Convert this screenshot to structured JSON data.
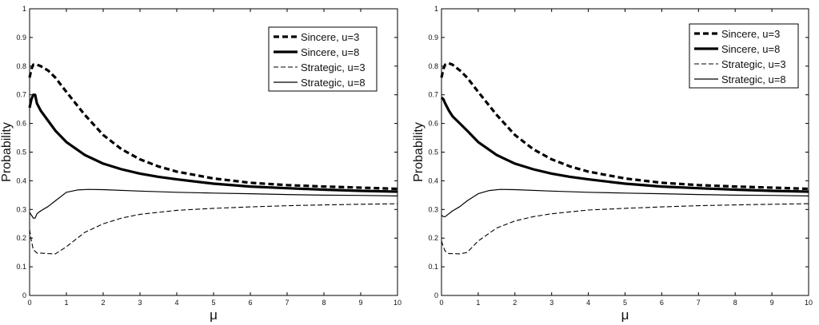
{
  "chart_data": [
    {
      "type": "line",
      "title": "",
      "xlabel": "μ",
      "ylabel": "Probability",
      "xlim": [
        0,
        10
      ],
      "ylim": [
        0,
        1
      ],
      "xticks": [
        "0",
        "1",
        "2",
        "3",
        "4",
        "5",
        "6",
        "7",
        "8",
        "9",
        "10"
      ],
      "yticks": [
        "0",
        "0.1",
        "0.2",
        "0.3",
        "0.4",
        "0.5",
        "0.6",
        "0.7",
        "0.8",
        "0.9",
        "1"
      ],
      "grid": false,
      "legend_position": "top-right",
      "series": [
        {
          "name": "Sincere, u=3",
          "style": "dashed-thick",
          "x": [
            0,
            0.05,
            0.1,
            0.2,
            0.3,
            0.5,
            0.7,
            1,
            1.5,
            2,
            2.5,
            3,
            3.5,
            4,
            5,
            6,
            7,
            8,
            9,
            10
          ],
          "y": [
            0.76,
            0.79,
            0.805,
            0.805,
            0.8,
            0.785,
            0.76,
            0.71,
            0.63,
            0.56,
            0.51,
            0.475,
            0.45,
            0.432,
            0.408,
            0.393,
            0.385,
            0.38,
            0.376,
            0.372
          ]
        },
        {
          "name": "Sincere, u=8",
          "style": "solid-thick",
          "x": [
            0,
            0.05,
            0.1,
            0.15,
            0.2,
            0.3,
            0.5,
            0.7,
            1,
            1.5,
            2,
            2.5,
            3,
            3.5,
            4,
            5,
            6,
            7,
            8,
            9,
            10
          ],
          "y": [
            0.655,
            0.685,
            0.7,
            0.7,
            0.67,
            0.645,
            0.61,
            0.575,
            0.535,
            0.49,
            0.46,
            0.44,
            0.425,
            0.414,
            0.405,
            0.39,
            0.38,
            0.374,
            0.369,
            0.365,
            0.362
          ]
        },
        {
          "name": "Strategic, u=3",
          "style": "dashed-thin",
          "x": [
            0,
            0.05,
            0.1,
            0.2,
            0.3,
            0.5,
            0.7,
            1,
            1.5,
            2,
            2.5,
            3,
            4,
            5,
            6,
            7,
            8,
            9,
            10
          ],
          "y": [
            0.23,
            0.19,
            0.16,
            0.148,
            0.148,
            0.146,
            0.145,
            0.17,
            0.22,
            0.25,
            0.27,
            0.283,
            0.297,
            0.304,
            0.309,
            0.313,
            0.316,
            0.318,
            0.32
          ]
        },
        {
          "name": "Strategic, u=8",
          "style": "solid-thin",
          "x": [
            0,
            0.05,
            0.1,
            0.15,
            0.2,
            0.3,
            0.5,
            0.7,
            1,
            1.3,
            1.6,
            2,
            3,
            4,
            5,
            6,
            7,
            8,
            9,
            10
          ],
          "y": [
            0.29,
            0.28,
            0.27,
            0.27,
            0.285,
            0.295,
            0.31,
            0.33,
            0.36,
            0.368,
            0.37,
            0.369,
            0.364,
            0.36,
            0.357,
            0.355,
            0.352,
            0.35,
            0.349,
            0.347
          ]
        }
      ]
    },
    {
      "type": "line",
      "title": "",
      "xlabel": "μ",
      "ylabel": "Probability",
      "xlim": [
        0,
        10
      ],
      "ylim": [
        0,
        1
      ],
      "xticks": [
        "0",
        "1",
        "2",
        "3",
        "4",
        "5",
        "6",
        "7",
        "8",
        "9",
        "10"
      ],
      "yticks": [
        "0",
        "0.1",
        "0.2",
        "0.3",
        "0.4",
        "0.5",
        "0.6",
        "0.7",
        "0.8",
        "0.9",
        "1"
      ],
      "grid": false,
      "legend_position": "top-right",
      "series": [
        {
          "name": "Sincere, u=3",
          "style": "dashed-thick",
          "x": [
            0,
            0.05,
            0.1,
            0.2,
            0.3,
            0.5,
            0.7,
            1,
            1.5,
            2,
            2.5,
            3,
            3.5,
            4,
            5,
            6,
            7,
            8,
            9,
            10
          ],
          "y": [
            0.76,
            0.79,
            0.805,
            0.81,
            0.805,
            0.785,
            0.76,
            0.71,
            0.63,
            0.56,
            0.51,
            0.475,
            0.45,
            0.432,
            0.408,
            0.393,
            0.385,
            0.38,
            0.376,
            0.372
          ]
        },
        {
          "name": "Sincere, u=8",
          "style": "solid-thick",
          "x": [
            0,
            0.05,
            0.1,
            0.2,
            0.3,
            0.5,
            0.7,
            1,
            1.5,
            2,
            2.5,
            3,
            3.5,
            4,
            5,
            6,
            7,
            8,
            9,
            10
          ],
          "y": [
            0.69,
            0.685,
            0.67,
            0.645,
            0.625,
            0.6,
            0.575,
            0.535,
            0.49,
            0.46,
            0.44,
            0.425,
            0.414,
            0.405,
            0.39,
            0.38,
            0.374,
            0.369,
            0.365,
            0.362
          ]
        },
        {
          "name": "Strategic, u=3",
          "style": "dashed-thin",
          "x": [
            0,
            0.05,
            0.1,
            0.2,
            0.3,
            0.5,
            0.7,
            1,
            1.5,
            2,
            2.5,
            3,
            4,
            5,
            6,
            7,
            8,
            9,
            10
          ],
          "y": [
            0.19,
            0.17,
            0.155,
            0.146,
            0.146,
            0.145,
            0.15,
            0.19,
            0.235,
            0.26,
            0.275,
            0.285,
            0.298,
            0.304,
            0.309,
            0.313,
            0.316,
            0.318,
            0.32
          ]
        },
        {
          "name": "Strategic, u=8",
          "style": "solid-thin",
          "x": [
            0,
            0.05,
            0.1,
            0.2,
            0.3,
            0.5,
            0.7,
            1,
            1.3,
            1.6,
            2,
            3,
            4,
            5,
            6,
            7,
            8,
            9,
            10
          ],
          "y": [
            0.28,
            0.275,
            0.275,
            0.285,
            0.295,
            0.31,
            0.33,
            0.355,
            0.366,
            0.37,
            0.369,
            0.364,
            0.36,
            0.357,
            0.355,
            0.352,
            0.35,
            0.349,
            0.347
          ]
        }
      ]
    }
  ]
}
